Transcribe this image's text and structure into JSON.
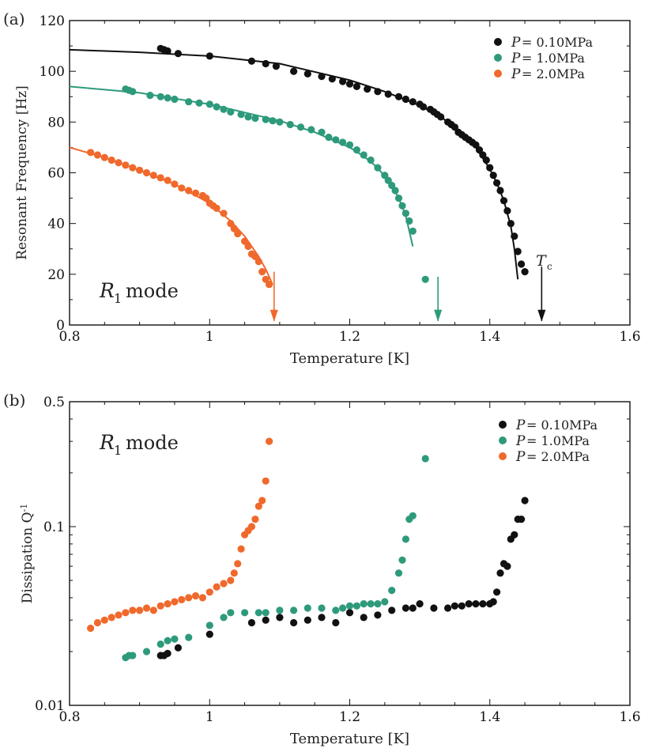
{
  "colors": {
    "black": "#111111",
    "green": "#2e9a7c",
    "orange": "#f0692c"
  },
  "chart_data": [
    {
      "type": "scatter",
      "panel_label": "(a)",
      "xlabel": "Temperature [K]",
      "ylabel": "Resonant Frequency [Hz]",
      "xlim": [
        0.8,
        1.6
      ],
      "ylim": [
        0,
        120
      ],
      "x_ticks": [
        0.8,
        1.0,
        1.2,
        1.4,
        1.6
      ],
      "x_tick_labels": [
        "0.8",
        "1",
        "1.2",
        "1.4",
        "1.6"
      ],
      "y_ticks": [
        0,
        20,
        40,
        60,
        80,
        100,
        120
      ],
      "y_tick_labels": [
        "0",
        "20",
        "40",
        "60",
        "80",
        "100",
        "120"
      ],
      "annotation": {
        "italic": "R",
        "sub": "1",
        "rest": " mode"
      },
      "tc_label": "T",
      "tc_sub": "c",
      "legend": [
        {
          "prefix": "P",
          "text": " = 0.10MPa",
          "color": "#111111"
        },
        {
          "prefix": "P",
          "text": " = 1.0MPa",
          "color": "#2e9a7c"
        },
        {
          "prefix": "P",
          "text": " = 2.0MPa",
          "color": "#f0692c"
        }
      ],
      "arrows": [
        {
          "x": 1.092,
          "y_from": 21,
          "y_to": 1,
          "color": "#f0692c"
        },
        {
          "x": 1.326,
          "y_from": 19,
          "y_to": 1,
          "color": "#2e9a7c"
        },
        {
          "x": 1.474,
          "y_from": 23,
          "y_to": 1,
          "color": "#111111"
        }
      ],
      "series": [
        {
          "name": "P = 0.10MPa",
          "color": "#111111",
          "x": [
            0.93,
            0.935,
            0.94,
            0.955,
            1.0,
            1.06,
            1.08,
            1.095,
            1.12,
            1.14,
            1.16,
            1.175,
            1.19,
            1.2,
            1.21,
            1.225,
            1.24,
            1.255,
            1.27,
            1.28,
            1.29,
            1.3,
            1.305,
            1.315,
            1.32,
            1.325,
            1.33,
            1.34,
            1.345,
            1.35,
            1.355,
            1.36,
            1.365,
            1.37,
            1.375,
            1.38,
            1.385,
            1.39,
            1.395,
            1.4,
            1.405,
            1.41,
            1.415,
            1.42,
            1.425,
            1.43,
            1.435,
            1.44,
            1.445,
            1.45
          ],
          "y": [
            109,
            108.5,
            108,
            107,
            106,
            104,
            103,
            102,
            100,
            99,
            98,
            97,
            96,
            95,
            94,
            93,
            92,
            91,
            90,
            89,
            88,
            87,
            86,
            85,
            84,
            83,
            82,
            80,
            79,
            78,
            76,
            75,
            74,
            73,
            72,
            71,
            69,
            67,
            65,
            62,
            59,
            56,
            53,
            49,
            45,
            40,
            35,
            29,
            24,
            21
          ],
          "fit_x": [
            0.8,
            0.9,
            1.0,
            1.1,
            1.2,
            1.25,
            1.3,
            1.33,
            1.36,
            1.38,
            1.4,
            1.41,
            1.42,
            1.43,
            1.435,
            1.44
          ],
          "fit_y": [
            108.5,
            107.5,
            106,
            103,
            96.5,
            92,
            86.5,
            82,
            76,
            70,
            61.5,
            56,
            49,
            39,
            30,
            18
          ]
        },
        {
          "name": "P = 1.0MPa",
          "color": "#2e9a7c",
          "x": [
            0.88,
            0.885,
            0.89,
            0.915,
            0.93,
            0.94,
            0.95,
            0.97,
            0.985,
            1.0,
            1.01,
            1.02,
            1.03,
            1.045,
            1.055,
            1.065,
            1.08,
            1.09,
            1.1,
            1.115,
            1.13,
            1.145,
            1.16,
            1.17,
            1.18,
            1.19,
            1.2,
            1.21,
            1.22,
            1.23,
            1.24,
            1.25,
            1.255,
            1.26,
            1.265,
            1.27,
            1.275,
            1.28,
            1.285,
            1.29,
            1.308
          ],
          "y": [
            93,
            92.5,
            92,
            90.5,
            90,
            89.5,
            89,
            88,
            87.5,
            87,
            86,
            85,
            84,
            83,
            82,
            81.5,
            81,
            80.5,
            80,
            79,
            78,
            77,
            76,
            74,
            73,
            72,
            71,
            69,
            67,
            65,
            62,
            59,
            57,
            55,
            53,
            50,
            47,
            44,
            41,
            37,
            18
          ],
          "fit_x": [
            0.8,
            0.9,
            1.0,
            1.1,
            1.15,
            1.2,
            1.22,
            1.24,
            1.26,
            1.27,
            1.28,
            1.29
          ],
          "fit_y": [
            94,
            91.5,
            87,
            80.5,
            76,
            70,
            66.5,
            62,
            55,
            50,
            43,
            31
          ]
        },
        {
          "name": "P = 2.0MPa",
          "color": "#f0692c",
          "x": [
            0.83,
            0.84,
            0.85,
            0.86,
            0.87,
            0.88,
            0.89,
            0.9,
            0.91,
            0.92,
            0.93,
            0.94,
            0.95,
            0.96,
            0.97,
            0.98,
            0.99,
            0.995,
            1.0,
            1.005,
            1.01,
            1.02,
            1.03,
            1.035,
            1.04,
            1.05,
            1.055,
            1.06,
            1.065,
            1.07,
            1.075,
            1.08,
            1.085
          ],
          "y": [
            68,
            67,
            66,
            65,
            64,
            63,
            62,
            61,
            60,
            59,
            58,
            57,
            55.5,
            54,
            53,
            52,
            51,
            50,
            48,
            47,
            46,
            44,
            40,
            38,
            36,
            33,
            31,
            28,
            27,
            25,
            21,
            18,
            16
          ],
          "fit_x": [
            0.8,
            0.85,
            0.9,
            0.95,
            1.0,
            1.03,
            1.05,
            1.07,
            1.08,
            1.09
          ],
          "fit_y": [
            70,
            66,
            61,
            55.5,
            48,
            41,
            35,
            27,
            22,
            16
          ]
        }
      ]
    },
    {
      "type": "scatter",
      "panel_label": "(b)",
      "xlabel": "Temperature [K]",
      "ylabel": "Dissipation Q",
      "ylabel_sup": "-1",
      "yscale": "log",
      "xlim": [
        0.8,
        1.6
      ],
      "ylim": [
        0.01,
        0.5
      ],
      "x_ticks": [
        0.8,
        1.0,
        1.2,
        1.4,
        1.6
      ],
      "x_tick_labels": [
        "0.8",
        "1",
        "1.2",
        "1.4",
        "1.6"
      ],
      "y_ticks": [
        0.01,
        0.1,
        0.5
      ],
      "y_tick_labels": [
        "0.01",
        "0.1",
        "0.5"
      ],
      "annotation": {
        "italic": "R",
        "sub": "1",
        "rest": " mode"
      },
      "legend": [
        {
          "prefix": "P",
          "text": " = 0.10MPa",
          "color": "#111111"
        },
        {
          "prefix": "P",
          "text": " = 1.0MPa",
          "color": "#2e9a7c"
        },
        {
          "prefix": "P",
          "text": " = 2.0MPa",
          "color": "#f0692c"
        }
      ],
      "series": [
        {
          "name": "P = 0.10MPa",
          "color": "#111111",
          "x": [
            0.93,
            0.935,
            0.94,
            0.955,
            1.0,
            1.06,
            1.08,
            1.1,
            1.12,
            1.14,
            1.16,
            1.18,
            1.2,
            1.22,
            1.24,
            1.26,
            1.28,
            1.29,
            1.3,
            1.32,
            1.34,
            1.35,
            1.36,
            1.37,
            1.38,
            1.39,
            1.4,
            1.405,
            1.41,
            1.415,
            1.42,
            1.425,
            1.43,
            1.435,
            1.44,
            1.445,
            1.45
          ],
          "y": [
            0.019,
            0.019,
            0.0195,
            0.021,
            0.025,
            0.029,
            0.03,
            0.031,
            0.029,
            0.03,
            0.031,
            0.029,
            0.033,
            0.031,
            0.032,
            0.034,
            0.035,
            0.035,
            0.037,
            0.035,
            0.035,
            0.036,
            0.036,
            0.037,
            0.037,
            0.037,
            0.037,
            0.038,
            0.043,
            0.055,
            0.062,
            0.06,
            0.085,
            0.09,
            0.11,
            0.11,
            0.14
          ],
          "fit_x": [],
          "fit_y": []
        },
        {
          "name": "P = 1.0MPa",
          "color": "#2e9a7c",
          "x": [
            0.88,
            0.885,
            0.89,
            0.91,
            0.93,
            0.94,
            0.95,
            0.97,
            1.0,
            1.02,
            1.03,
            1.05,
            1.07,
            1.08,
            1.1,
            1.12,
            1.14,
            1.16,
            1.18,
            1.19,
            1.2,
            1.21,
            1.22,
            1.23,
            1.24,
            1.25,
            1.26,
            1.27,
            1.275,
            1.28,
            1.285,
            1.29,
            1.308
          ],
          "y": [
            0.0185,
            0.019,
            0.019,
            0.02,
            0.022,
            0.023,
            0.0235,
            0.024,
            0.028,
            0.031,
            0.033,
            0.033,
            0.033,
            0.033,
            0.034,
            0.034,
            0.035,
            0.035,
            0.034,
            0.035,
            0.036,
            0.036,
            0.037,
            0.037,
            0.037,
            0.038,
            0.044,
            0.055,
            0.065,
            0.085,
            0.11,
            0.115,
            0.24
          ],
          "fit_x": [],
          "fit_y": []
        },
        {
          "name": "P = 2.0MPa",
          "color": "#f0692c",
          "x": [
            0.83,
            0.84,
            0.85,
            0.86,
            0.87,
            0.88,
            0.89,
            0.9,
            0.91,
            0.92,
            0.93,
            0.94,
            0.95,
            0.96,
            0.97,
            0.98,
            0.99,
            1.0,
            1.01,
            1.02,
            1.03,
            1.035,
            1.04,
            1.045,
            1.05,
            1.055,
            1.06,
            1.065,
            1.07,
            1.075,
            1.08,
            1.085
          ],
          "y": [
            0.027,
            0.029,
            0.03,
            0.031,
            0.032,
            0.033,
            0.034,
            0.034,
            0.035,
            0.034,
            0.036,
            0.037,
            0.038,
            0.039,
            0.04,
            0.041,
            0.04,
            0.043,
            0.046,
            0.048,
            0.05,
            0.055,
            0.062,
            0.075,
            0.09,
            0.095,
            0.1,
            0.11,
            0.13,
            0.14,
            0.18,
            0.3
          ],
          "fit_x": [],
          "fit_y": []
        }
      ]
    }
  ]
}
